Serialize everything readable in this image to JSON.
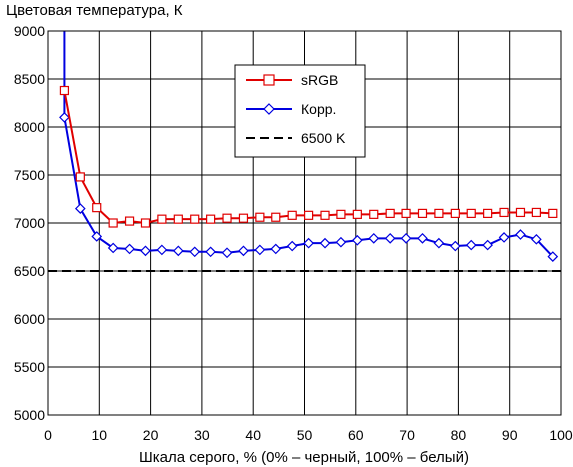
{
  "chart_data": {
    "type": "line",
    "title": "Цветовая температура, К",
    "xlabel": "Шкала серого, % (0% – черный, 100% – белый)",
    "ylabel": "",
    "xlim": [
      0,
      100
    ],
    "ylim": [
      5000,
      9000
    ],
    "xticks": [
      0,
      10,
      20,
      30,
      40,
      50,
      60,
      70,
      80,
      90,
      100
    ],
    "yticks": [
      5000,
      5500,
      6000,
      6500,
      7000,
      7500,
      8000,
      8500,
      9000
    ],
    "grid": true,
    "legend_position": "top-center",
    "series": [
      {
        "name": "sRGB",
        "color": "#e00000",
        "marker": "square",
        "x": [
          3.2,
          6.3,
          9.5,
          12.7,
          15.9,
          19.0,
          22.2,
          25.4,
          28.6,
          31.7,
          34.9,
          38.1,
          41.3,
          44.4,
          47.6,
          50.8,
          54.0,
          57.1,
          60.3,
          63.5,
          66.7,
          69.8,
          73.0,
          76.2,
          79.4,
          82.5,
          85.7,
          88.9,
          92.1,
          95.2,
          98.4
        ],
        "values": [
          8380,
          7480,
          7160,
          7000,
          7020,
          7000,
          7040,
          7040,
          7040,
          7040,
          7050,
          7050,
          7060,
          7060,
          7080,
          7080,
          7080,
          7090,
          7090,
          7090,
          7100,
          7100,
          7100,
          7100,
          7100,
          7100,
          7100,
          7110,
          7110,
          7110,
          7100
        ]
      },
      {
        "name": "Корр.",
        "color": "#0000e0",
        "marker": "diamond",
        "x": [
          3.2,
          6.3,
          9.5,
          12.7,
          15.9,
          19.0,
          22.2,
          25.4,
          28.6,
          31.7,
          34.9,
          38.1,
          41.3,
          44.4,
          47.6,
          50.8,
          54.0,
          57.1,
          60.3,
          63.5,
          66.7,
          69.8,
          73.0,
          76.2,
          79.4,
          82.5,
          85.7,
          88.9,
          92.1,
          95.2,
          98.4
        ],
        "values": [
          8100,
          7150,
          6860,
          6740,
          6730,
          6710,
          6720,
          6710,
          6700,
          6700,
          6690,
          6710,
          6720,
          6730,
          6760,
          6790,
          6790,
          6800,
          6820,
          6840,
          6840,
          6840,
          6840,
          6790,
          6760,
          6770,
          6770,
          6850,
          6880,
          6830,
          6650
        ]
      },
      {
        "name": "6500 K",
        "color": "#000000",
        "style": "dashed",
        "x": [
          0,
          100
        ],
        "values": [
          6500,
          6500
        ]
      }
    ],
    "korr_spike": {
      "x": [
        3.2,
        3.2
      ],
      "values": [
        9000,
        8100
      ]
    }
  }
}
